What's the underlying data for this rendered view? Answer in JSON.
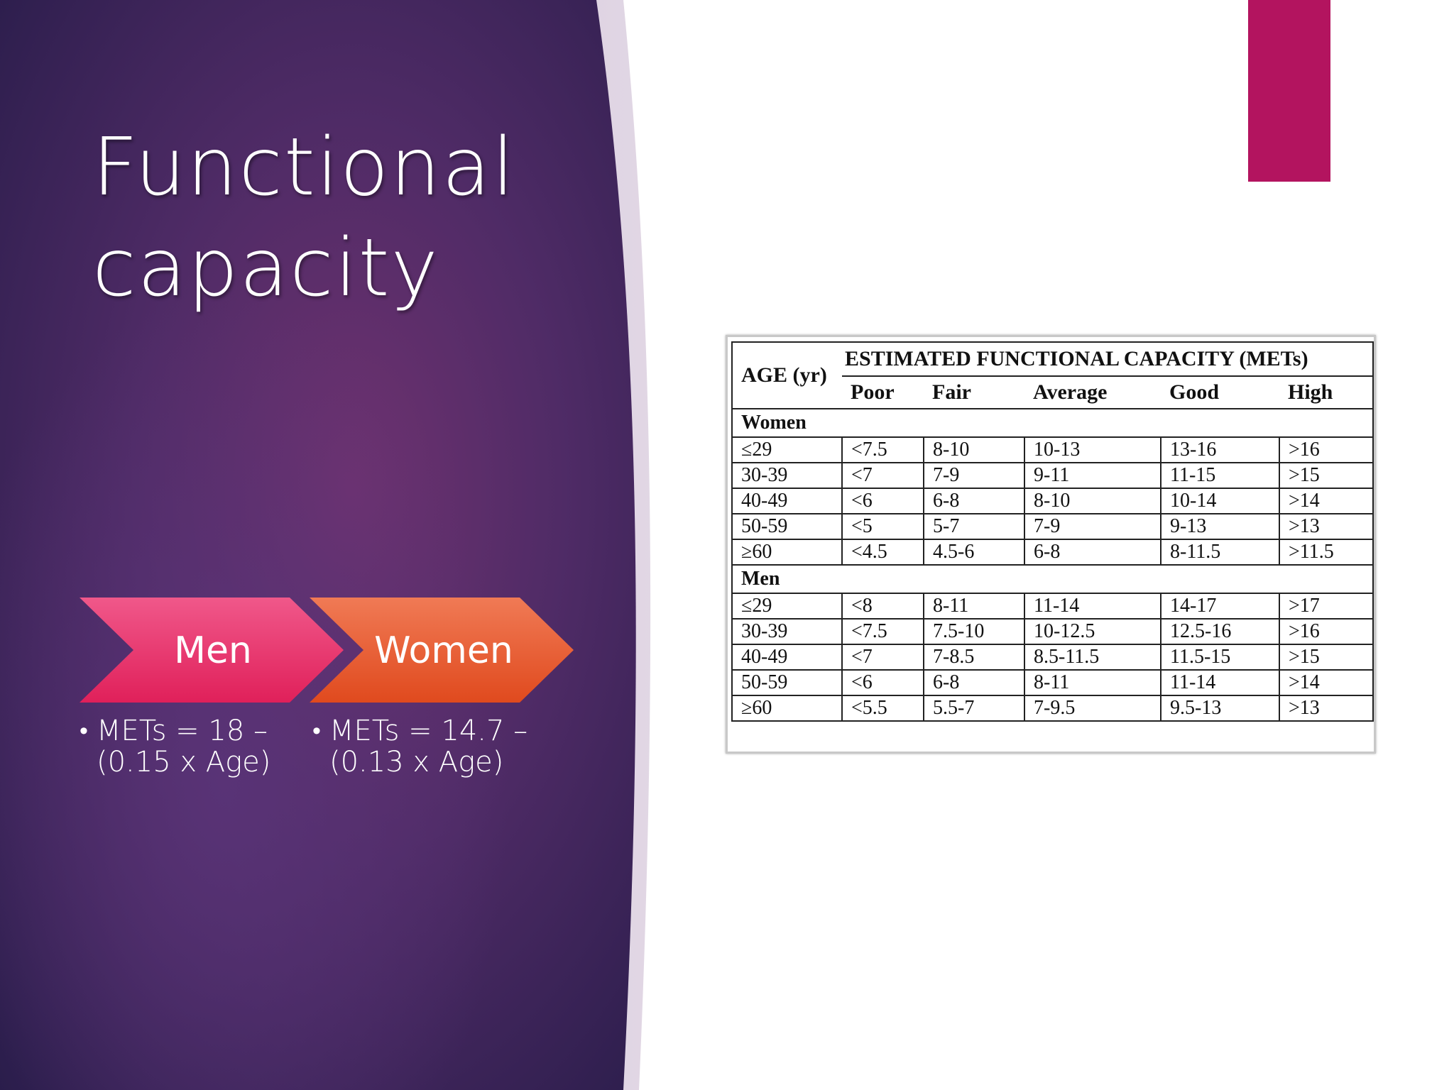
{
  "slide": {
    "title_line1": "Functional",
    "title_line2": "capacity",
    "colors": {
      "panel_dark": "#2b1f4e",
      "panel_mid": "#6a2f6d",
      "accent_bar": "#b3145f",
      "chevron_men": "#e8336a",
      "chevron_women": "#ea5a2e"
    }
  },
  "chevrons": {
    "men_label": "Men",
    "women_label": "Women"
  },
  "formulas": {
    "men_bullet": "•",
    "men_line1": "METs = 18 –",
    "men_line2": "(0.15 x Age)",
    "women_bullet": "•",
    "women_line1": "METs = 14.7 –",
    "women_line2": "(0.13 x Age)"
  },
  "table": {
    "age_header": "AGE (yr)",
    "capacity_header": "ESTIMATED FUNCTIONAL CAPACITY (METs)",
    "columns": [
      "Poor",
      "Fair",
      "Average",
      "Good",
      "High"
    ],
    "women_label": "Women",
    "women_rows": [
      [
        "≤29",
        "<7.5",
        "8-10",
        "10-13",
        "13-16",
        ">16"
      ],
      [
        "30-39",
        "<7",
        "7-9",
        "9-11",
        "11-15",
        ">15"
      ],
      [
        "40-49",
        "<6",
        "6-8",
        "8-10",
        "10-14",
        ">14"
      ],
      [
        "50-59",
        "<5",
        "5-7",
        "7-9",
        "9-13",
        ">13"
      ],
      [
        "≥60",
        "<4.5",
        "4.5-6",
        "6-8",
        "8-11.5",
        ">11.5"
      ]
    ],
    "men_label": "Men",
    "men_rows": [
      [
        "≤29",
        "<8",
        "8-11",
        "11-14",
        "14-17",
        ">17"
      ],
      [
        "30-39",
        "<7.5",
        "7.5-10",
        "10-12.5",
        "12.5-16",
        ">16"
      ],
      [
        "40-49",
        "<7",
        "7-8.5",
        "8.5-11.5",
        "11.5-15",
        ">15"
      ],
      [
        "50-59",
        "<6",
        "6-8",
        "8-11",
        "11-14",
        ">14"
      ],
      [
        "≥60",
        "<5.5",
        "5.5-7",
        "7-9.5",
        "9.5-13",
        ">13"
      ]
    ]
  }
}
